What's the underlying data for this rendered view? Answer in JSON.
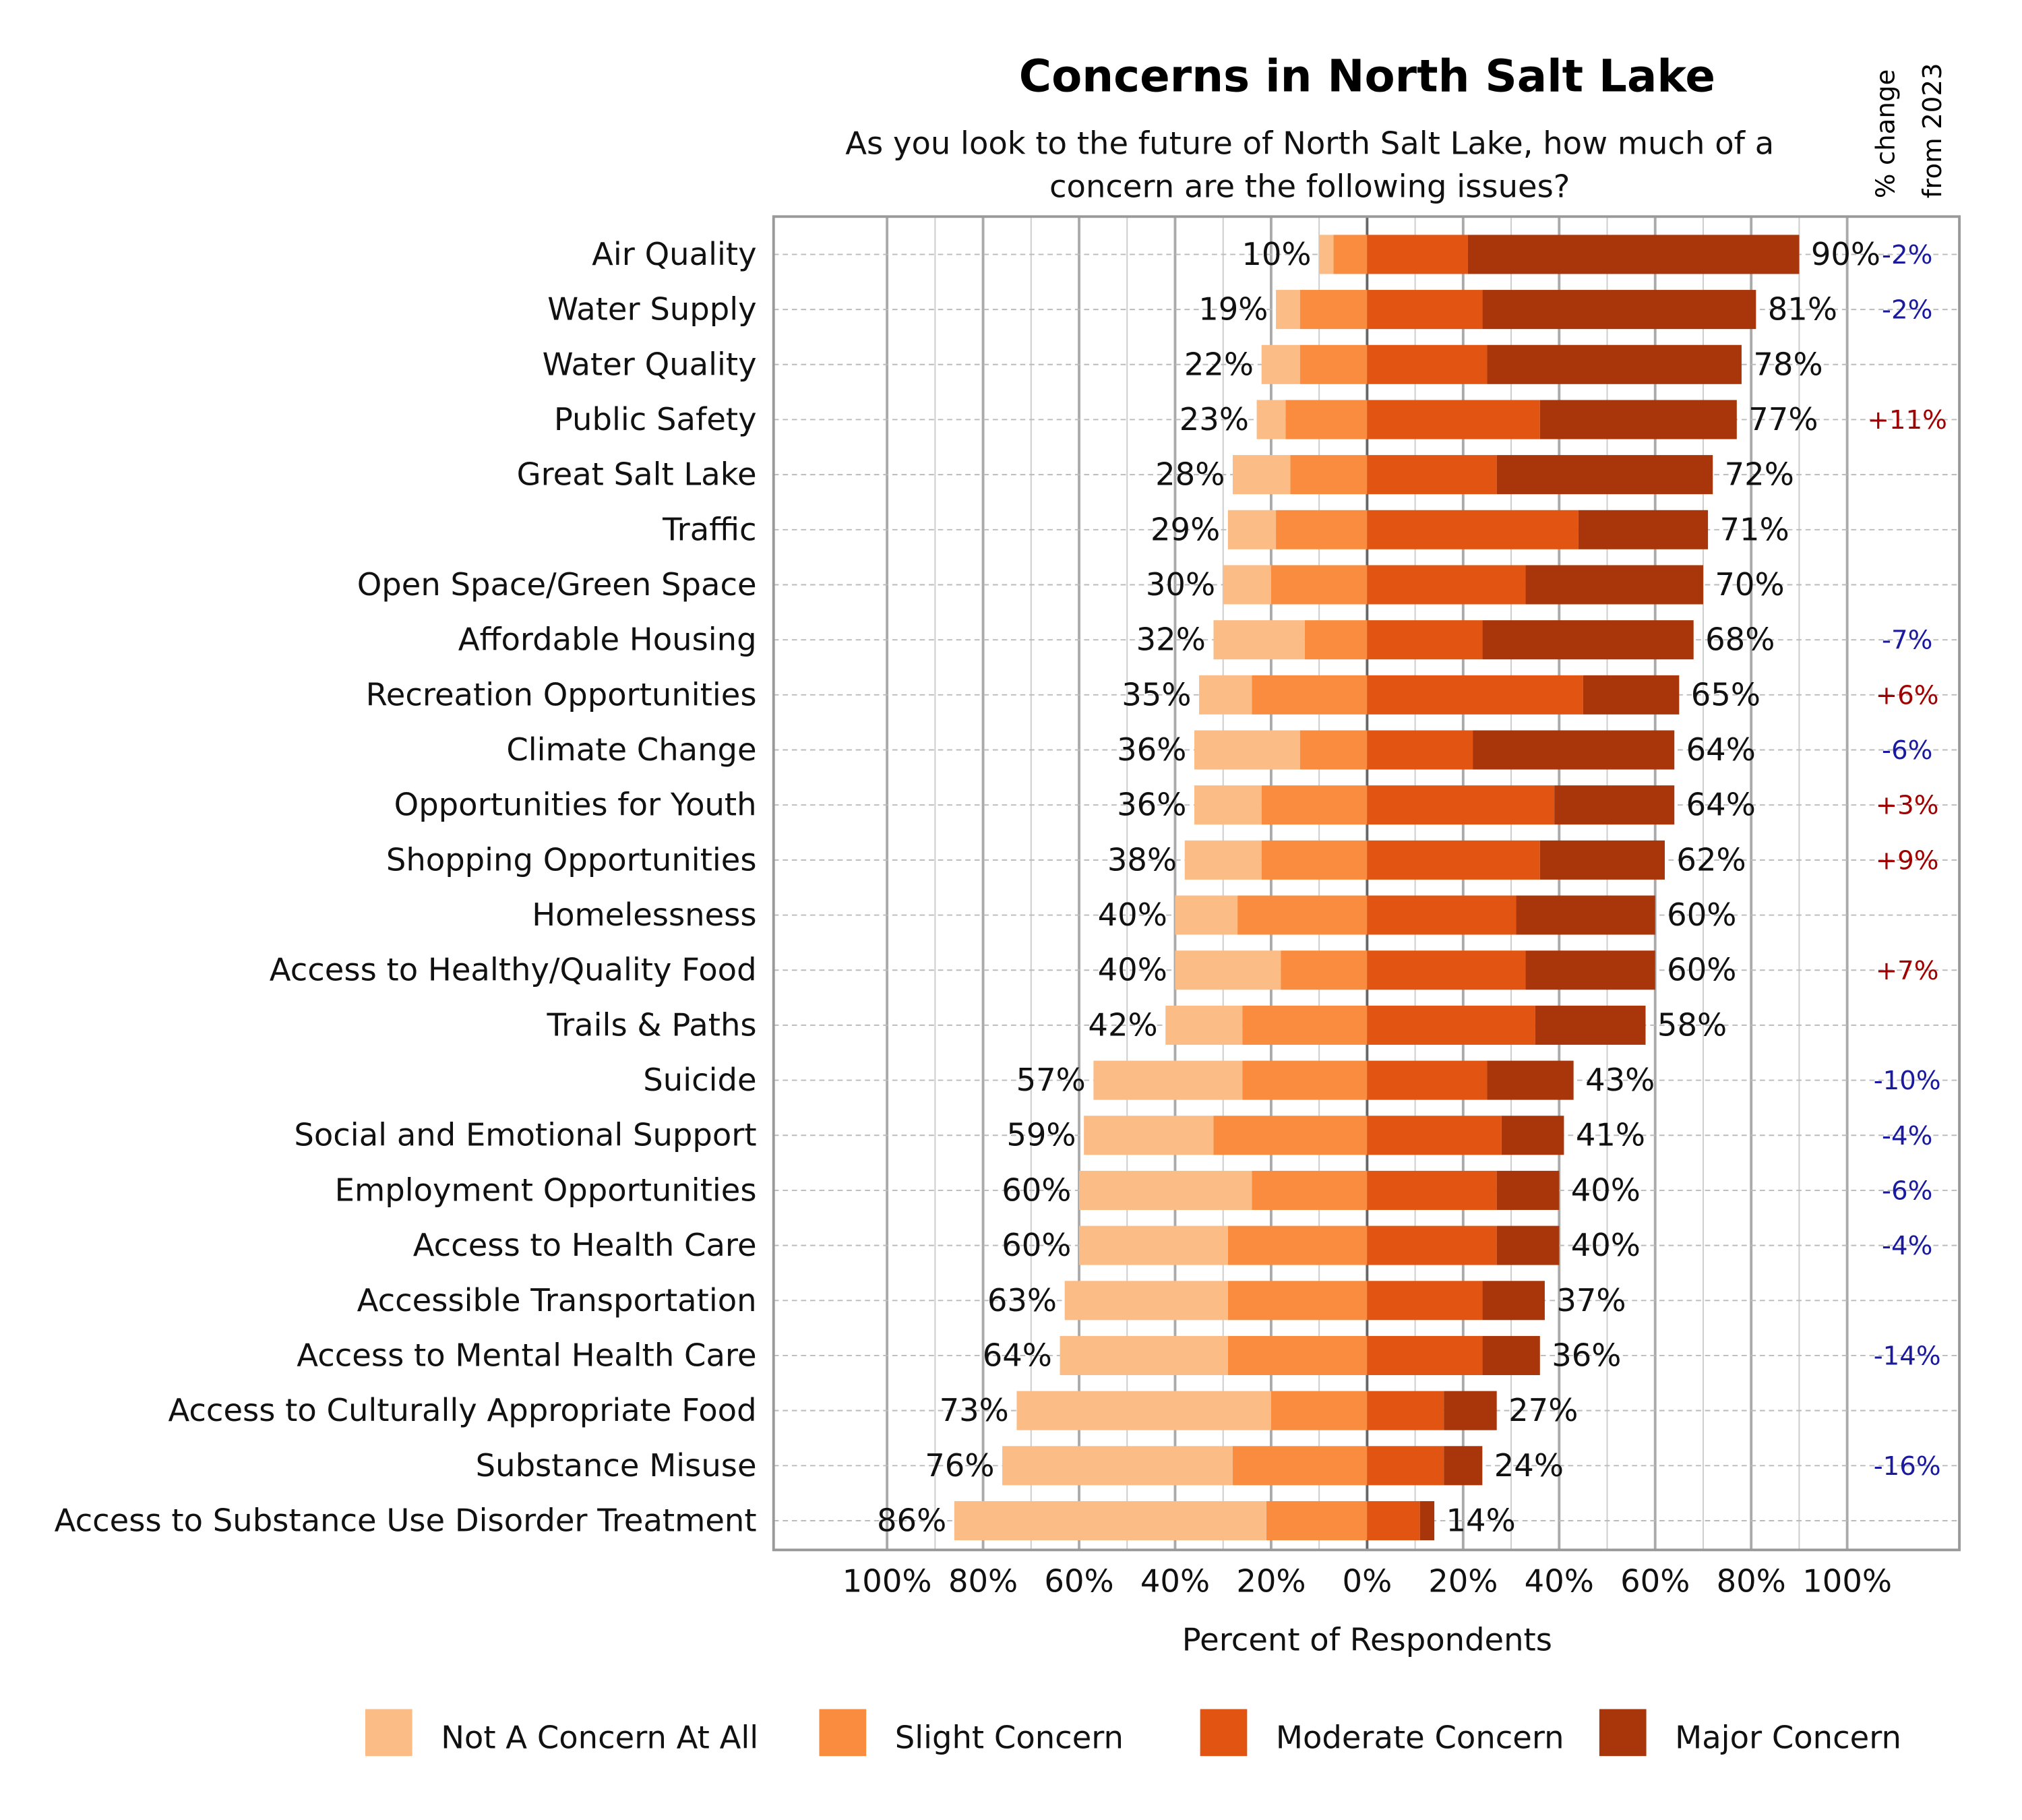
{
  "chart_data": {
    "type": "bar",
    "orientation": "horizontal",
    "stacking": "diverging",
    "title": "Concerns in North Salt Lake",
    "subtitle_lines": [
      "As you look to the future of North Salt Lake, how much of a",
      "concern are the following issues?"
    ],
    "xlabel": "Percent of Respondents",
    "change_header": [
      "% change",
      "from 2023"
    ],
    "xlim": [
      -100,
      100
    ],
    "x_ticks": [
      "100%",
      "80%",
      "60%",
      "40%",
      "20%",
      "0%",
      "20%",
      "40%",
      "60%",
      "80%",
      "100%"
    ],
    "grid": true,
    "legend_position": "bottom",
    "categories": [
      "Air Quality",
      "Water Supply",
      "Water Quality",
      "Public Safety",
      "Great Salt Lake",
      "Traffic",
      "Open Space/Green Space",
      "Affordable Housing",
      "Recreation Opportunities",
      "Climate Change",
      "Opportunities for Youth",
      "Shopping Opportunities",
      "Homelessness",
      "Access to Healthy/Quality Food",
      "Trails & Paths",
      "Suicide",
      "Social and Emotional Support",
      "Employment Opportunities",
      "Access to Health Care",
      "Accessible Transportation",
      "Access to Mental Health Care",
      "Access to Culturally Appropriate Food",
      "Substance Misuse",
      "Access to Substance Use Disorder Treatment"
    ],
    "series": [
      {
        "name": "Not A Concern At All",
        "color": "#FBBC85",
        "side": "left",
        "values": [
          3,
          5,
          8,
          6,
          12,
          10,
          10,
          19,
          11,
          22,
          14,
          16,
          13,
          22,
          16,
          31,
          27,
          36,
          31,
          34,
          35,
          53,
          48,
          65
        ]
      },
      {
        "name": "Slight Concern",
        "color": "#F98C3E",
        "side": "left",
        "values": [
          7,
          14,
          14,
          17,
          16,
          19,
          20,
          13,
          24,
          14,
          22,
          22,
          27,
          18,
          26,
          26,
          32,
          24,
          29,
          29,
          29,
          20,
          28,
          21
        ]
      },
      {
        "name": "Moderate Concern",
        "color": "#E25411",
        "side": "right",
        "values": [
          21,
          24,
          25,
          36,
          27,
          44,
          33,
          24,
          45,
          22,
          39,
          36,
          31,
          33,
          35,
          25,
          28,
          27,
          27,
          24,
          24,
          16,
          16,
          11
        ]
      },
      {
        "name": "Major Concern",
        "color": "#A8360A",
        "side": "right",
        "values": [
          69,
          57,
          53,
          41,
          45,
          27,
          37,
          44,
          20,
          42,
          25,
          26,
          29,
          27,
          23,
          18,
          13,
          13,
          13,
          13,
          12,
          11,
          8,
          3
        ]
      }
    ],
    "left_totals": [
      "10%",
      "19%",
      "22%",
      "23%",
      "28%",
      "29%",
      "30%",
      "32%",
      "35%",
      "36%",
      "36%",
      "38%",
      "40%",
      "40%",
      "42%",
      "57%",
      "59%",
      "60%",
      "60%",
      "63%",
      "64%",
      "73%",
      "76%",
      "86%"
    ],
    "right_totals": [
      "90%",
      "81%",
      "78%",
      "77%",
      "72%",
      "71%",
      "70%",
      "68%",
      "65%",
      "64%",
      "64%",
      "62%",
      "60%",
      "60%",
      "58%",
      "43%",
      "41%",
      "40%",
      "40%",
      "37%",
      "36%",
      "27%",
      "24%",
      "14%"
    ],
    "change_from_2023": [
      "-2%",
      "-2%",
      "",
      "+11%",
      "",
      "",
      "",
      "-7%",
      "+6%",
      "-6%",
      "+3%",
      "+9%",
      "",
      "+7%",
      "",
      "-10%",
      "-4%",
      "-6%",
      "-4%",
      "",
      "-14%",
      "",
      "-16%",
      ""
    ],
    "change_colors": {
      "negative": "#1A1AA0",
      "positive": "#A00000"
    }
  }
}
